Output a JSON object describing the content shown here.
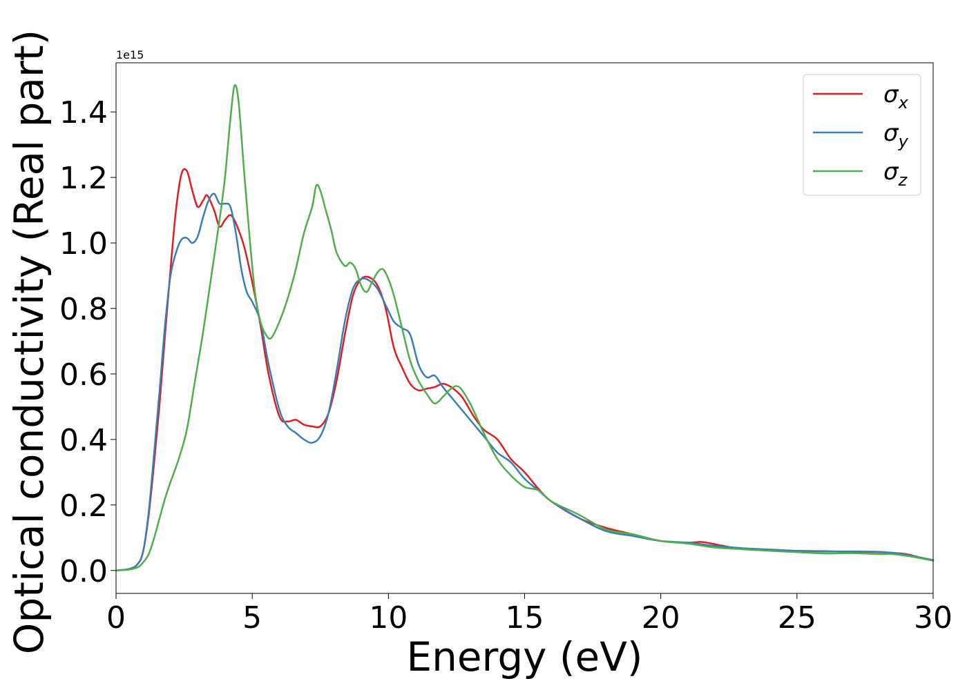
{
  "chart_data": {
    "type": "line",
    "xlabel": "Energy (eV)",
    "ylabel": "Optical conductivity (Real part)",
    "y_offset_label": "1e15",
    "y_scale": 1000000000000000.0,
    "xlim": [
      0,
      30
    ],
    "ylim": [
      -0.07,
      1.55
    ],
    "xticks": [
      0,
      5,
      10,
      15,
      20,
      25,
      30
    ],
    "xtick_labels": [
      "0",
      "5",
      "10",
      "15",
      "20",
      "25",
      "30"
    ],
    "yticks": [
      0.0,
      0.2,
      0.4,
      0.6,
      0.8,
      1.0,
      1.2,
      1.4
    ],
    "ytick_labels": [
      "0.0",
      "0.2",
      "0.4",
      "0.6",
      "0.8",
      "1.0",
      "1.2",
      "1.4"
    ],
    "grid": false,
    "legend_position": "top-right",
    "series": [
      {
        "name": "σx",
        "label_base": "σ",
        "label_sub": "x",
        "color": "#e41a1c",
        "x": [
          0,
          0.5,
          0.8,
          1.0,
          1.2,
          1.4,
          1.6,
          1.8,
          2.0,
          2.2,
          2.4,
          2.6,
          2.8,
          3.0,
          3.2,
          3.35,
          3.6,
          3.8,
          4.0,
          4.2,
          4.4,
          4.7,
          5.0,
          5.3,
          5.6,
          6.0,
          6.3,
          6.6,
          6.9,
          7.2,
          7.5,
          7.8,
          8.1,
          8.4,
          8.7,
          9.0,
          9.3,
          9.6,
          9.9,
          10.2,
          10.5,
          10.8,
          11.1,
          11.4,
          11.7,
          12.0,
          12.3,
          12.7,
          13.1,
          13.5,
          14.0,
          14.5,
          15.0,
          15.5,
          16.0,
          17.0,
          18.0,
          19.0,
          20.0,
          21.0,
          21.5,
          22.0,
          23.0,
          24.0,
          25.0,
          26.0,
          27.0,
          28.0,
          28.5,
          29.0,
          29.5,
          30.0
        ],
        "y": [
          0.0,
          0.005,
          0.02,
          0.06,
          0.17,
          0.33,
          0.51,
          0.72,
          0.92,
          1.1,
          1.21,
          1.22,
          1.16,
          1.11,
          1.13,
          1.145,
          1.1,
          1.05,
          1.07,
          1.085,
          1.06,
          0.99,
          0.88,
          0.75,
          0.6,
          0.47,
          0.455,
          0.46,
          0.445,
          0.44,
          0.44,
          0.48,
          0.58,
          0.72,
          0.84,
          0.89,
          0.895,
          0.87,
          0.8,
          0.68,
          0.62,
          0.57,
          0.55,
          0.555,
          0.56,
          0.57,
          0.56,
          0.53,
          0.475,
          0.43,
          0.4,
          0.34,
          0.3,
          0.25,
          0.21,
          0.16,
          0.13,
          0.11,
          0.09,
          0.085,
          0.087,
          0.08,
          0.065,
          0.063,
          0.06,
          0.059,
          0.057,
          0.056,
          0.054,
          0.05,
          0.04,
          0.03
        ]
      },
      {
        "name": "σy",
        "label_base": "σ",
        "label_sub": "y",
        "color": "#377eb8",
        "x": [
          0,
          0.5,
          0.8,
          1.0,
          1.2,
          1.4,
          1.6,
          1.8,
          2.0,
          2.2,
          2.4,
          2.6,
          2.8,
          3.0,
          3.2,
          3.4,
          3.6,
          3.8,
          4.0,
          4.2,
          4.4,
          4.6,
          4.8,
          5.0,
          5.3,
          5.6,
          6.0,
          6.3,
          6.6,
          6.9,
          7.2,
          7.5,
          7.8,
          8.1,
          8.4,
          8.7,
          9.0,
          9.3,
          9.6,
          9.9,
          10.2,
          10.5,
          10.8,
          11.1,
          11.4,
          11.7,
          12.0,
          12.3,
          12.7,
          13.1,
          13.5,
          14.0,
          14.5,
          15.0,
          15.5,
          16.0,
          17.0,
          18.0,
          19.0,
          20.0,
          21.0,
          22.0,
          23.0,
          24.0,
          25.0,
          26.0,
          27.0,
          28.0,
          28.5,
          29.0,
          29.5,
          30.0
        ],
        "y": [
          0.0,
          0.005,
          0.02,
          0.06,
          0.18,
          0.36,
          0.55,
          0.75,
          0.9,
          0.97,
          1.01,
          1.015,
          1.0,
          1.02,
          1.08,
          1.13,
          1.15,
          1.12,
          1.12,
          1.11,
          1.03,
          0.92,
          0.85,
          0.82,
          0.76,
          0.63,
          0.49,
          0.44,
          0.42,
          0.4,
          0.39,
          0.41,
          0.48,
          0.61,
          0.76,
          0.86,
          0.89,
          0.885,
          0.86,
          0.81,
          0.76,
          0.74,
          0.72,
          0.63,
          0.59,
          0.595,
          0.56,
          0.53,
          0.49,
          0.45,
          0.41,
          0.36,
          0.33,
          0.28,
          0.245,
          0.21,
          0.16,
          0.12,
          0.105,
          0.09,
          0.085,
          0.075,
          0.068,
          0.064,
          0.06,
          0.058,
          0.058,
          0.057,
          0.054,
          0.048,
          0.04,
          0.032
        ]
      },
      {
        "name": "σz",
        "label_base": "σ",
        "label_sub": "z",
        "color": "#4daf4a",
        "x": [
          0,
          0.5,
          0.8,
          1.0,
          1.2,
          1.4,
          1.6,
          1.8,
          2.0,
          2.3,
          2.6,
          2.9,
          3.2,
          3.5,
          3.8,
          4.0,
          4.2,
          4.35,
          4.5,
          4.7,
          4.9,
          5.1,
          5.3,
          5.5,
          5.7,
          6.0,
          6.3,
          6.6,
          6.9,
          7.2,
          7.35,
          7.5,
          7.7,
          7.9,
          8.1,
          8.4,
          8.6,
          8.8,
          9.0,
          9.2,
          9.4,
          9.6,
          9.8,
          10.0,
          10.2,
          10.5,
          10.8,
          11.1,
          11.4,
          11.7,
          12.0,
          12.3,
          12.6,
          13.0,
          13.5,
          14.0,
          14.5,
          15.0,
          15.5,
          16.0,
          17.0,
          18.0,
          19.0,
          20.0,
          21.0,
          22.0,
          23.0,
          24.0,
          25.0,
          26.0,
          27.0,
          28.0,
          28.5,
          29.0,
          29.5,
          30.0
        ],
        "y": [
          0.0,
          0.003,
          0.01,
          0.025,
          0.05,
          0.1,
          0.16,
          0.22,
          0.27,
          0.34,
          0.43,
          0.58,
          0.73,
          0.9,
          1.07,
          1.2,
          1.38,
          1.48,
          1.43,
          1.22,
          1.02,
          0.85,
          0.76,
          0.72,
          0.71,
          0.76,
          0.83,
          0.92,
          1.03,
          1.11,
          1.175,
          1.16,
          1.1,
          1.04,
          0.97,
          0.93,
          0.94,
          0.92,
          0.87,
          0.85,
          0.88,
          0.91,
          0.92,
          0.89,
          0.84,
          0.74,
          0.64,
          0.58,
          0.54,
          0.51,
          0.53,
          0.555,
          0.56,
          0.51,
          0.42,
          0.34,
          0.29,
          0.255,
          0.245,
          0.21,
          0.17,
          0.125,
          0.11,
          0.09,
          0.082,
          0.07,
          0.065,
          0.06,
          0.056,
          0.052,
          0.053,
          0.05,
          0.05,
          0.045,
          0.038,
          0.03
        ]
      }
    ]
  }
}
